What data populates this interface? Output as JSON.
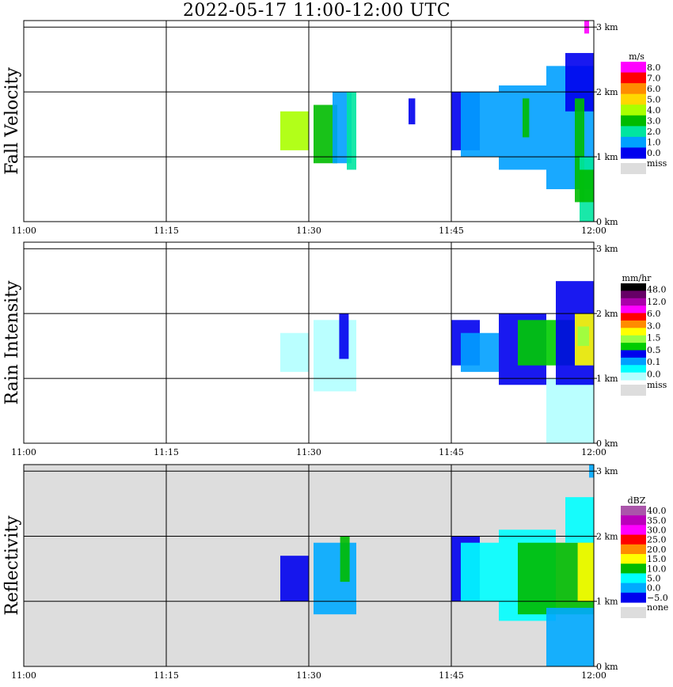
{
  "title": "2022-05-17   11:00-12:00 UTC",
  "chart_data": [
    {
      "type": "heatmap",
      "ylabel": "Fall Velocity",
      "x_ticks": [
        "11:00",
        "11:15",
        "11:30",
        "11:45",
        "12:00"
      ],
      "y_ticks": [
        "0 km",
        "1 km",
        "2 km",
        "3 km"
      ],
      "ylim_km": [
        0,
        3.1
      ],
      "grid": true,
      "background": "#ffffff",
      "legend": {
        "unit": "m/s",
        "labels": [
          "8.0",
          "7.0",
          "6.0",
          "5.0",
          "4.0",
          "3.0",
          "2.0",
          "1.0",
          "0.0"
        ],
        "colors": [
          "#ff00ff",
          "#ff0000",
          "#ff8c00",
          "#ffd700",
          "#aaff00",
          "#00bb00",
          "#00e5a0",
          "#00a0ff",
          "#0000ee"
        ],
        "missing_label": "miss",
        "missing_color": "#dddddd"
      },
      "echoes": [
        {
          "t": [
            27.0,
            30.0
          ],
          "h": [
            1.1,
            1.7
          ],
          "c": "#aaff00"
        },
        {
          "t": [
            30.5,
            33.0
          ],
          "h": [
            0.9,
            1.8
          ],
          "c": "#00bb00"
        },
        {
          "t": [
            32.5,
            34.5
          ],
          "h": [
            0.9,
            2.0
          ],
          "c": "#00a0ff"
        },
        {
          "t": [
            34.0,
            35.0
          ],
          "h": [
            0.8,
            2.0
          ],
          "c": "#00e5a0"
        },
        {
          "t": [
            40.5,
            41.2
          ],
          "h": [
            1.5,
            1.9
          ],
          "c": "#0000ee"
        },
        {
          "t": [
            45.0,
            48.0
          ],
          "h": [
            1.1,
            2.0
          ],
          "c": "#0000ee"
        },
        {
          "t": [
            46.0,
            50.0
          ],
          "h": [
            1.0,
            2.0
          ],
          "c": "#00a0ff"
        },
        {
          "t": [
            50.0,
            55.0
          ],
          "h": [
            0.8,
            2.1
          ],
          "c": "#00a0ff"
        },
        {
          "t": [
            52.5,
            53.2
          ],
          "h": [
            1.3,
            1.9
          ],
          "c": "#00bb00"
        },
        {
          "t": [
            55.0,
            60.0
          ],
          "h": [
            0.5,
            2.4
          ],
          "c": "#00a0ff"
        },
        {
          "t": [
            57.0,
            60.0
          ],
          "h": [
            1.7,
            2.6
          ],
          "c": "#0000ee"
        },
        {
          "t": [
            58.0,
            59.0
          ],
          "h": [
            0.3,
            1.9
          ],
          "c": "#00bb00"
        },
        {
          "t": [
            58.5,
            60.0
          ],
          "h": [
            0.0,
            1.0
          ],
          "c": "#00e5a0"
        },
        {
          "t": [
            58.5,
            60.0
          ],
          "h": [
            0.3,
            0.8
          ],
          "c": "#00bb00"
        },
        {
          "t": [
            59.0,
            59.5
          ],
          "h": [
            2.9,
            3.1
          ],
          "c": "#ff00ff"
        }
      ]
    },
    {
      "type": "heatmap",
      "ylabel": "Rain Intensity",
      "x_ticks": [
        "11:00",
        "11:15",
        "11:30",
        "11:45",
        "12:00"
      ],
      "y_ticks": [
        "0 km",
        "1 km",
        "2 km",
        "3 km"
      ],
      "ylim_km": [
        0,
        3.1
      ],
      "grid": true,
      "background": "#ffffff",
      "legend": {
        "unit": "mm/hr",
        "labels": [
          "48.0",
          "12.0",
          "6.0",
          "3.0",
          "1.5",
          "0.5",
          "0.1",
          "0.0"
        ],
        "colors": [
          "#000000",
          "#660066",
          "#aa00aa",
          "#ff00ff",
          "#ff0000",
          "#ff8c00",
          "#ffff00",
          "#99ff44",
          "#00cc00",
          "#0000ee",
          "#00a0ff",
          "#00ffff",
          "#b3ffff"
        ],
        "missing_label": "miss",
        "missing_color": "#dddddd"
      },
      "echoes": [
        {
          "t": [
            27.0,
            30.0
          ],
          "h": [
            1.1,
            1.7
          ],
          "c": "#b3ffff"
        },
        {
          "t": [
            30.5,
            35.0
          ],
          "h": [
            0.8,
            1.9
          ],
          "c": "#b3ffff"
        },
        {
          "t": [
            33.2,
            34.2
          ],
          "h": [
            1.3,
            2.0
          ],
          "c": "#0000ee"
        },
        {
          "t": [
            45.0,
            48.0
          ],
          "h": [
            1.2,
            1.9
          ],
          "c": "#0000ee"
        },
        {
          "t": [
            46.0,
            50.0
          ],
          "h": [
            1.1,
            1.7
          ],
          "c": "#00a0ff"
        },
        {
          "t": [
            50.0,
            55.0
          ],
          "h": [
            0.9,
            2.0
          ],
          "c": "#0000ee"
        },
        {
          "t": [
            52.0,
            58.0
          ],
          "h": [
            1.2,
            1.9
          ],
          "c": "#00cc00"
        },
        {
          "t": [
            55.0,
            60.0
          ],
          "h": [
            0.0,
            1.0
          ],
          "c": "#b3ffff"
        },
        {
          "t": [
            56.0,
            60.0
          ],
          "h": [
            0.9,
            2.5
          ],
          "c": "#0000ee"
        },
        {
          "t": [
            58.0,
            60.0
          ],
          "h": [
            1.2,
            2.0
          ],
          "c": "#ffff00"
        },
        {
          "t": [
            58.3,
            59.5
          ],
          "h": [
            1.5,
            1.8
          ],
          "c": "#99ff44"
        }
      ]
    },
    {
      "type": "heatmap",
      "ylabel": "Reflectivity",
      "x_ticks": [
        "11:00",
        "11:15",
        "11:30",
        "11:45",
        "12:00"
      ],
      "y_ticks": [
        "0 km",
        "1 km",
        "2 km",
        "3 km"
      ],
      "ylim_km": [
        0,
        3.1
      ],
      "grid": true,
      "background": "#dddddd",
      "legend": {
        "unit": "dBZ",
        "labels": [
          "40.0",
          "35.0",
          "30.0",
          "25.0",
          "20.0",
          "15.0",
          "10.0",
          "5.0",
          "0.0",
          "−5.0"
        ],
        "colors": [
          "#aa55aa",
          "#bb00bb",
          "#ff00ff",
          "#ff0000",
          "#ff8c00",
          "#ffff00",
          "#00bb00",
          "#00ffff",
          "#00aaff",
          "#0000ee"
        ],
        "missing_label": "none",
        "missing_color": "#dddddd"
      },
      "echoes": [
        {
          "t": [
            27.0,
            30.0
          ],
          "h": [
            1.0,
            1.7
          ],
          "c": "#0000ee"
        },
        {
          "t": [
            30.5,
            35.0
          ],
          "h": [
            0.8,
            1.9
          ],
          "c": "#00aaff"
        },
        {
          "t": [
            33.3,
            34.3
          ],
          "h": [
            1.3,
            2.0
          ],
          "c": "#00bb00"
        },
        {
          "t": [
            45.0,
            48.0
          ],
          "h": [
            1.0,
            2.0
          ],
          "c": "#0000ee"
        },
        {
          "t": [
            46.0,
            50.0
          ],
          "h": [
            1.0,
            1.9
          ],
          "c": "#00ffff"
        },
        {
          "t": [
            50.0,
            56.0
          ],
          "h": [
            0.7,
            2.1
          ],
          "c": "#00ffff"
        },
        {
          "t": [
            52.0,
            60.0
          ],
          "h": [
            0.8,
            1.9
          ],
          "c": "#00bb00"
        },
        {
          "t": [
            55.0,
            60.0
          ],
          "h": [
            0.0,
            0.9
          ],
          "c": "#00aaff"
        },
        {
          "t": [
            57.0,
            60.0
          ],
          "h": [
            1.9,
            2.6
          ],
          "c": "#00ffff"
        },
        {
          "t": [
            58.3,
            60.0
          ],
          "h": [
            1.0,
            1.9
          ],
          "c": "#ffff00"
        },
        {
          "t": [
            59.5,
            60.0
          ],
          "h": [
            2.9,
            3.1
          ],
          "c": "#00aaff"
        }
      ]
    }
  ]
}
